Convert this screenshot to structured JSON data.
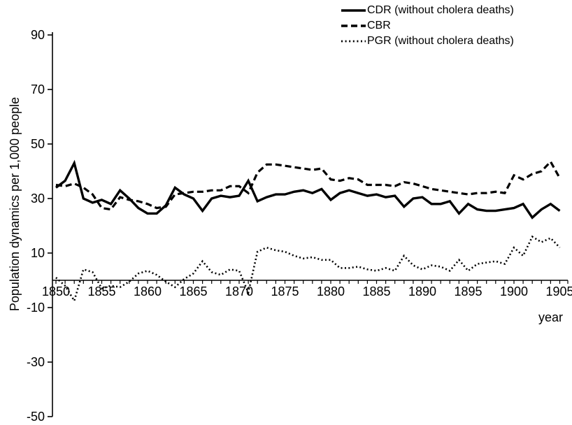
{
  "figure": {
    "background": "#ffffff",
    "line_color": "#000000",
    "text_color": "#000000"
  },
  "chart_data": {
    "type": "line",
    "title": "",
    "xlabel": "year",
    "ylabel": "Population dynamics per 1,000 people",
    "ylim": [
      -50,
      90
    ],
    "yticks": [
      90,
      70,
      50,
      30,
      10,
      -10,
      -30,
      -50
    ],
    "xticks": [
      1850,
      1855,
      1860,
      1865,
      1870,
      1875,
      1880,
      1885,
      1890,
      1895,
      1900,
      1905
    ],
    "grid": false,
    "legend_position": "top-center",
    "x": [
      1850,
      1851,
      1852,
      1853,
      1854,
      1855,
      1856,
      1857,
      1858,
      1859,
      1860,
      1861,
      1862,
      1863,
      1864,
      1865,
      1866,
      1867,
      1868,
      1869,
      1870,
      1871,
      1872,
      1873,
      1874,
      1875,
      1876,
      1877,
      1878,
      1879,
      1880,
      1881,
      1882,
      1883,
      1884,
      1885,
      1886,
      1887,
      1888,
      1889,
      1890,
      1891,
      1892,
      1893,
      1894,
      1895,
      1896,
      1897,
      1898,
      1899,
      1900,
      1901,
      1902,
      1903,
      1904,
      1905
    ],
    "series": [
      {
        "key": "cdr",
        "name": "CDR (without cholera deaths)",
        "style": "solid",
        "color": "#000000",
        "values": [
          34,
          36.5,
          43,
          30,
          28.5,
          29.5,
          28,
          33,
          30,
          26.5,
          24.5,
          24.5,
          27.5,
          34,
          31.5,
          30,
          25.5,
          30,
          31,
          30.5,
          31,
          36.5,
          29,
          30.5,
          31.5,
          31.5,
          32.5,
          33,
          32,
          33.5,
          29.5,
          32,
          33,
          32,
          31,
          31.5,
          30.5,
          31,
          27,
          30,
          30.5,
          28,
          28,
          29,
          24.5,
          28,
          26,
          25.5,
          25.5,
          26,
          26.5,
          28,
          23,
          26,
          28,
          25.5
        ]
      },
      {
        "key": "cbr",
        "name": "CBR",
        "style": "dashed",
        "color": "#000000",
        "values": [
          35,
          34.5,
          35.5,
          34,
          31.5,
          26.5,
          26,
          30.5,
          29.5,
          29,
          28,
          26.5,
          27,
          31.5,
          32,
          32.5,
          32.5,
          33,
          33,
          34.5,
          34.5,
          32,
          39.5,
          42.5,
          42.5,
          42,
          41.5,
          41,
          40.5,
          41,
          37,
          36.5,
          37.5,
          37,
          35,
          35,
          35,
          34.5,
          36,
          35.5,
          34.5,
          33.5,
          33,
          32.5,
          32,
          31.5,
          32,
          32,
          32.5,
          32,
          38.5,
          37,
          39,
          40,
          43.5,
          37.5
        ]
      },
      {
        "key": "pgr",
        "name": "PGR (without cholera deaths)",
        "style": "dotted",
        "color": "#000000",
        "values": [
          1,
          -2,
          -7.5,
          4,
          3,
          -3,
          -2,
          -2.5,
          -0.5,
          2.5,
          3.5,
          2,
          -0.5,
          -2.5,
          0.5,
          2.5,
          7,
          3,
          2,
          4,
          3.5,
          -4.5,
          10.5,
          12,
          11,
          10.5,
          9,
          8,
          8.5,
          7.5,
          7.5,
          4.5,
          4.5,
          5,
          4,
          3.5,
          4.5,
          3.5,
          9,
          5.5,
          4,
          5.5,
          5,
          3.5,
          7.5,
          3.5,
          6,
          6.5,
          7,
          6,
          12,
          9,
          16,
          14,
          15.5,
          12
        ]
      }
    ]
  }
}
